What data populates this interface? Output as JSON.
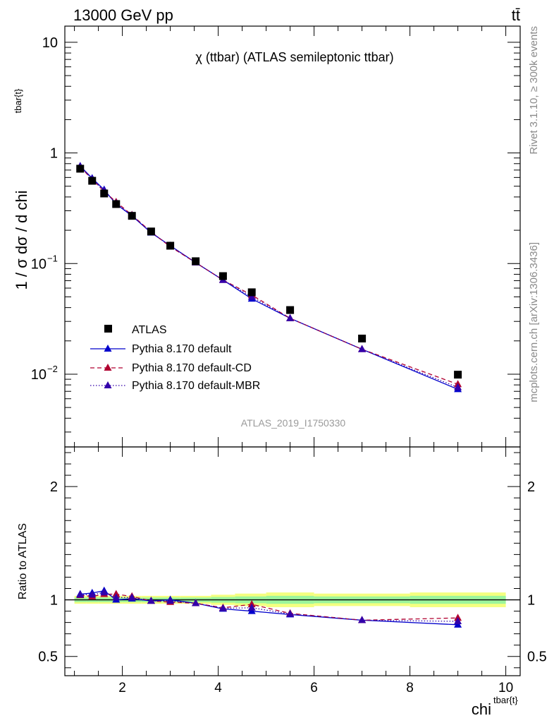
{
  "header": {
    "left": "13000 GeV pp",
    "right": "tt̄"
  },
  "side_labels": {
    "rivet": "Rivet 3.1.10, ≥ 300k events",
    "mcplots": "mcplots.cern.ch [arXiv:1306.3436]"
  },
  "chart_data": {
    "type": "scatter",
    "title": "χ (ttbar) (ATLAS semileptonic ttbar)",
    "analysis_label": "ATLAS_2019_I1750330",
    "xlabel_main": "chi",
    "xlabel_sup": "tbar{t}",
    "ylabel": "1 / σ dσ / d chi",
    "ylabel_sup": "tbar{t}",
    "ratio_ylabel": "Ratio to ATLAS",
    "xlim": [
      0.8,
      10.3
    ],
    "ylim": [
      0.0022,
      14
    ],
    "ratio_ylim": [
      0.33,
      2.35
    ],
    "yscale": "log",
    "x_ticks": [
      2,
      4,
      6,
      8,
      10
    ],
    "x_tick_labels": [
      "2",
      "4",
      "6",
      "8",
      "10"
    ],
    "y_ticks": [
      0.01,
      0.1,
      1,
      10
    ],
    "y_tick_labels": [
      {
        "base": "10",
        "exp": "−2"
      },
      {
        "base": "10",
        "exp": "−1"
      },
      {
        "base": "1",
        "exp": ""
      },
      {
        "base": "10",
        "exp": ""
      }
    ],
    "ratio_ticks": [
      0.5,
      1,
      2
    ],
    "ratio_tick_labels": [
      "0.5",
      "1",
      "2"
    ],
    "legend_position": "lower-left",
    "data": {
      "name": "ATLAS",
      "color": "#000000",
      "x": [
        1.12,
        1.37,
        1.62,
        1.87,
        2.2,
        2.6,
        3.0,
        3.53,
        4.1,
        4.7,
        5.5,
        7.0,
        9.0
      ],
      "y": [
        0.72,
        0.56,
        0.43,
        0.345,
        0.27,
        0.195,
        0.145,
        0.105,
        0.077,
        0.055,
        0.038,
        0.021,
        0.0099
      ]
    },
    "series": [
      {
        "name": "Pythia 8.170 default",
        "color": "#0000cc",
        "style": "solid",
        "x": [
          1.12,
          1.37,
          1.62,
          1.87,
          2.2,
          2.6,
          3.0,
          3.53,
          4.1,
          4.7,
          5.5,
          7.0,
          9.0
        ],
        "y": [
          0.76,
          0.59,
          0.465,
          0.345,
          0.27,
          0.19,
          0.145,
          0.102,
          0.071,
          0.048,
          0.032,
          0.0168,
          0.0073
        ],
        "ratio": [
          1.05,
          1.06,
          1.08,
          1.0,
          1.01,
          0.99,
          1.0,
          0.97,
          0.92,
          0.9,
          0.87,
          0.82,
          0.78
        ]
      },
      {
        "name": "Pythia 8.170 default-CD",
        "color": "#b00030",
        "style": "dashed",
        "x": [
          1.12,
          1.37,
          1.62,
          1.87,
          2.2,
          2.6,
          3.0,
          3.53,
          4.1,
          4.7,
          5.5,
          7.0,
          9.0
        ],
        "y": [
          0.75,
          0.575,
          0.45,
          0.36,
          0.275,
          0.193,
          0.142,
          0.102,
          0.071,
          0.052,
          0.032,
          0.0168,
          0.0081
        ],
        "ratio": [
          1.04,
          1.03,
          1.05,
          1.05,
          1.03,
          0.99,
          0.98,
          0.97,
          0.93,
          0.96,
          0.88,
          0.82,
          0.84
        ]
      },
      {
        "name": "Pythia 8.170 default-MBR",
        "color": "#3300aa",
        "style": "dotted",
        "x": [
          1.12,
          1.37,
          1.62,
          1.87,
          2.2,
          2.6,
          3.0,
          3.53,
          4.1,
          4.7,
          5.5,
          7.0,
          9.0
        ],
        "y": [
          0.755,
          0.58,
          0.455,
          0.35,
          0.272,
          0.192,
          0.144,
          0.102,
          0.071,
          0.05,
          0.032,
          0.0168,
          0.0076
        ],
        "ratio": [
          1.045,
          1.045,
          1.065,
          1.02,
          1.02,
          0.99,
          0.99,
          0.97,
          0.925,
          0.93,
          0.875,
          0.82,
          0.81
        ]
      }
    ],
    "ratio_band": {
      "x_edges": [
        1.0,
        1.25,
        1.5,
        1.75,
        2.0,
        2.4,
        2.8,
        3.2,
        3.85,
        4.35,
        5.0,
        6.0,
        8.0,
        10.0
      ],
      "inner": [
        0.02,
        0.02,
        0.02,
        0.02,
        0.02,
        0.02,
        0.02,
        0.02,
        0.025,
        0.03,
        0.035,
        0.03,
        0.035
      ],
      "outer": [
        0.035,
        0.035,
        0.035,
        0.035,
        0.035,
        0.035,
        0.035,
        0.035,
        0.045,
        0.055,
        0.065,
        0.055,
        0.065
      ]
    }
  }
}
